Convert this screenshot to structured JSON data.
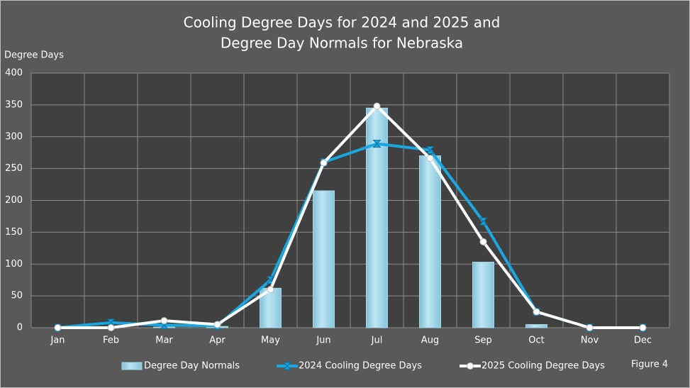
{
  "chart_data": {
    "type": "bar-line",
    "title": [
      "Cooling Degree Days for 2024 and 2025 and",
      "Degree Day Normals for Nebraska"
    ],
    "y_axis_label": "Degree Days",
    "annotation": "Figure 4",
    "categories": [
      "Jan",
      "Feb",
      "Mar",
      "Apr",
      "May",
      "Jun",
      "Jul",
      "Aug",
      "Sep",
      "Oct",
      "Nov",
      "Dec"
    ],
    "series": [
      {
        "name": "Degree Day Normals",
        "type": "bar",
        "color": "#a6d8ea",
        "values": [
          0,
          0,
          1,
          2,
          62,
          215,
          345,
          270,
          103,
          5,
          0,
          0
        ]
      },
      {
        "name": "2024 Cooling Degree Days",
        "type": "line",
        "color": "#1aa7e0",
        "values": [
          0,
          8,
          4,
          3,
          75,
          260,
          289,
          279,
          167,
          25,
          0,
          0
        ]
      },
      {
        "name": "2025 Cooling Degree Days",
        "type": "line",
        "color": "#ffffff",
        "values": [
          0,
          0,
          11,
          5,
          60,
          259,
          348,
          266,
          135,
          25,
          0,
          0
        ]
      }
    ],
    "ylim": [
      0,
      400
    ],
    "yticks": [
      0,
      50,
      100,
      150,
      200,
      250,
      300,
      350,
      400
    ],
    "grid": true
  }
}
